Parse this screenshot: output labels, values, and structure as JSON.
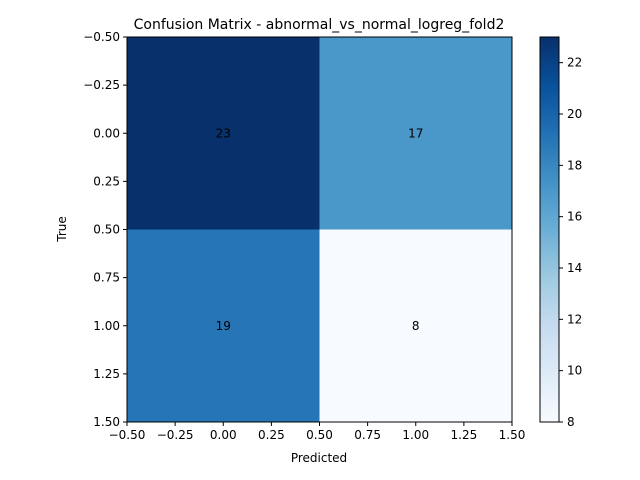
{
  "chart_data": {
    "type": "heatmap",
    "title": "Confusion Matrix - abnormal_vs_normal_logreg_fold2",
    "xlabel": "Predicted",
    "ylabel": "True",
    "matrix": [
      [
        23,
        17
      ],
      [
        19,
        8
      ]
    ],
    "xlim": [
      -0.5,
      1.5
    ],
    "ylim": [
      1.5,
      -0.5
    ],
    "x_ticks": [
      -0.5,
      -0.25,
      0.0,
      0.25,
      0.5,
      0.75,
      1.0,
      1.25,
      1.5
    ],
    "x_tick_labels": [
      "−0.50",
      "−0.25",
      "0.00",
      "0.25",
      "0.50",
      "0.75",
      "1.00",
      "1.25",
      "1.50"
    ],
    "y_ticks": [
      -0.5,
      -0.25,
      0.0,
      0.25,
      0.5,
      0.75,
      1.0,
      1.25,
      1.5
    ],
    "y_tick_labels": [
      "−0.50",
      "−0.25",
      "0.00",
      "0.25",
      "0.50",
      "0.75",
      "1.00",
      "1.25",
      "1.50"
    ],
    "colorbar": {
      "colormap": "Blues",
      "range": [
        8,
        23
      ],
      "ticks": [
        8,
        10,
        12,
        14,
        16,
        18,
        20,
        22
      ],
      "tick_labels": [
        "8",
        "10",
        "12",
        "14",
        "16",
        "18",
        "20",
        "22"
      ]
    },
    "grid": false
  }
}
